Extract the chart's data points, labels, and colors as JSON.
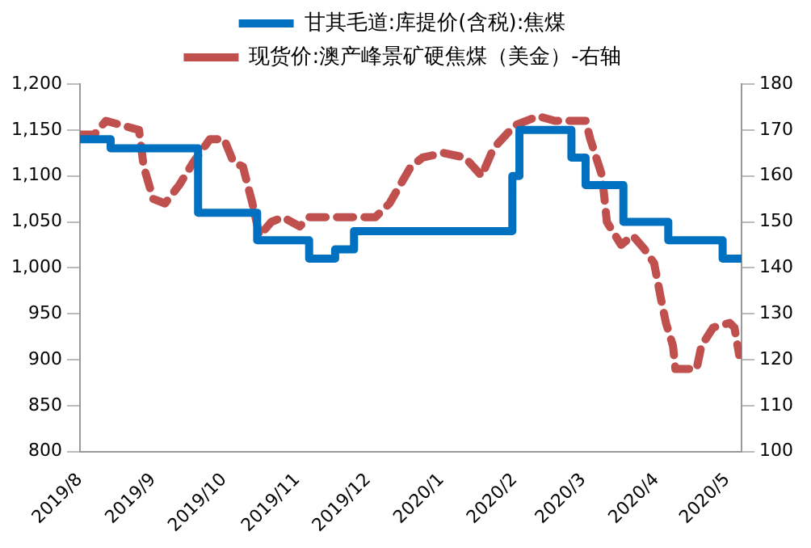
{
  "chart_data": {
    "type": "line",
    "legend": "top",
    "grid": false,
    "xlim": [
      "2019-08-01",
      "2020-05-07"
    ],
    "xticks": [
      {
        "value": "2019-08-01",
        "label": "2019/8"
      },
      {
        "value": "2019-09-01",
        "label": "2019/9"
      },
      {
        "value": "2019-10-01",
        "label": "2019/10"
      },
      {
        "value": "2019-11-01",
        "label": "2019/11"
      },
      {
        "value": "2019-12-01",
        "label": "2019/12"
      },
      {
        "value": "2020-01-01",
        "label": "2020/1"
      },
      {
        "value": "2020-02-01",
        "label": "2020/2"
      },
      {
        "value": "2020-03-01",
        "label": "2020/3"
      },
      {
        "value": "2020-04-01",
        "label": "2020/4"
      },
      {
        "value": "2020-05-01",
        "label": "2020/5"
      }
    ],
    "ylim": [
      800,
      1200
    ],
    "yticks": [
      {
        "value": 800,
        "label": "800"
      },
      {
        "value": 850,
        "label": "850"
      },
      {
        "value": 900,
        "label": "900"
      },
      {
        "value": 950,
        "label": "950"
      },
      {
        "value": 1000,
        "label": "1,000"
      },
      {
        "value": 1050,
        "label": "1,050"
      },
      {
        "value": 1100,
        "label": "1,100"
      },
      {
        "value": 1150,
        "label": "1,150"
      },
      {
        "value": 1200,
        "label": "1,200"
      }
    ],
    "y2lim": [
      100,
      180
    ],
    "y2ticks": [
      100,
      110,
      120,
      130,
      140,
      150,
      160,
      170,
      180
    ],
    "series": [
      {
        "name": "甘其毛道:库提价(含税):焦煤",
        "type": "step",
        "color": "#0070c0",
        "line_style": "solid",
        "x": [
          "2019-08-01",
          "2019-08-14",
          "2019-09-20",
          "2019-10-15",
          "2019-11-06",
          "2019-11-17",
          "2019-11-25",
          "2020-01-31",
          "2020-02-03",
          "2020-02-25",
          "2020-03-02",
          "2020-03-18",
          "2020-04-06",
          "2020-04-29",
          "2020-05-07"
        ],
        "values": [
          1140,
          1130,
          1060,
          1030,
          1010,
          1020,
          1040,
          1100,
          1150,
          1120,
          1090,
          1050,
          1030,
          1010,
          1010
        ]
      },
      {
        "name": "现货价:澳产峰景矿硬焦煤（美金）-右轴",
        "axis": "y2",
        "color": "#c0504d",
        "line_style": "dashed",
        "x": [
          "2019-08-01",
          "2019-08-07",
          "2019-08-12",
          "2019-08-19",
          "2019-08-26",
          "2019-08-28",
          "2019-09-01",
          "2019-09-06",
          "2019-09-12",
          "2019-09-18",
          "2019-09-25",
          "2019-10-01",
          "2019-10-05",
          "2019-10-09",
          "2019-10-13",
          "2019-10-16",
          "2019-10-21",
          "2019-10-26",
          "2019-11-02",
          "2019-11-06",
          "2019-11-18",
          "2019-12-04",
          "2019-12-10",
          "2019-12-19",
          "2019-12-24",
          "2020-01-02",
          "2020-01-11",
          "2020-01-18",
          "2020-01-23",
          "2020-02-01",
          "2020-02-11",
          "2020-02-18",
          "2020-02-24",
          "2020-03-02",
          "2020-03-04",
          "2020-03-09",
          "2020-03-11",
          "2020-03-17",
          "2020-03-22",
          "2020-03-27",
          "2020-03-31",
          "2020-04-03",
          "2020-04-05",
          "2020-04-08",
          "2020-04-09",
          "2020-04-18",
          "2020-04-20",
          "2020-04-25",
          "2020-05-02",
          "2020-05-04",
          "2020-05-06"
        ],
        "values": [
          169,
          169,
          172,
          171,
          170,
          162,
          155,
          154,
          158,
          163,
          168,
          168,
          163,
          162,
          154,
          147,
          150,
          151,
          149,
          151,
          151,
          151,
          154,
          162,
          164,
          165,
          164,
          160,
          166,
          171,
          173,
          172,
          172,
          172,
          168,
          160,
          150,
          145,
          147,
          144,
          141,
          133,
          128,
          123,
          118,
          118,
          123,
          127,
          128,
          127,
          121
        ]
      }
    ]
  }
}
